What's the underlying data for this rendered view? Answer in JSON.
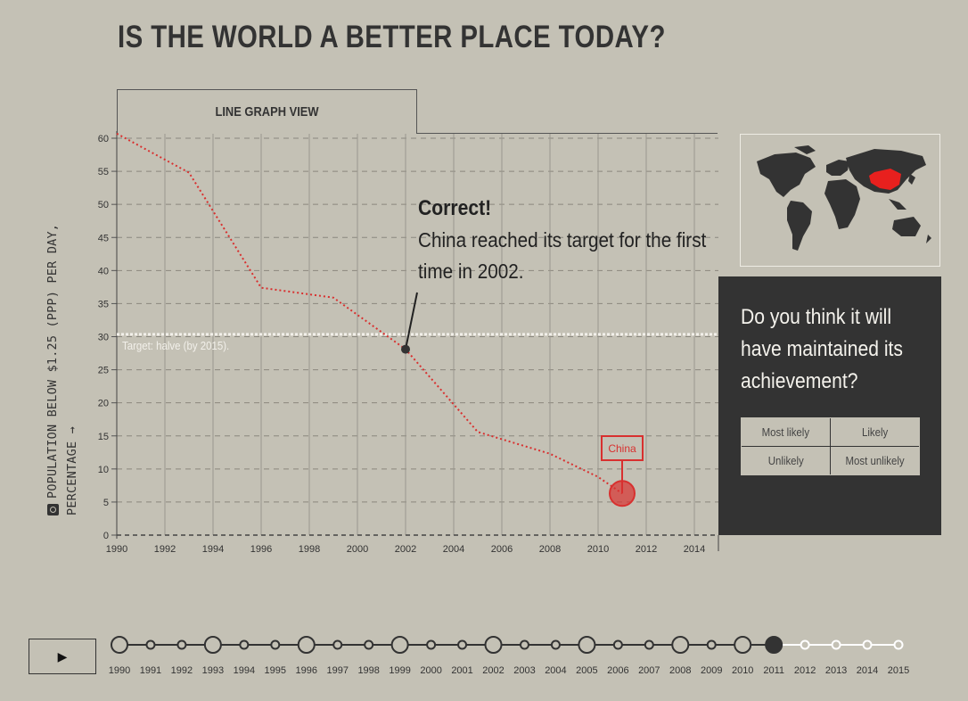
{
  "title": "IS THE WORLD A BETTER PLACE TODAY?",
  "tab_label": "LINE GRAPH VIEW",
  "y_axis_label": "POPULATION BELOW $1.25 (PPP) PER DAY, PERCENTAGE →",
  "annotation": {
    "heading": "Correct!",
    "body": "China reached its target for the first time in 2002."
  },
  "target_label": "Target: halve (by 2015).",
  "series_label": "China",
  "question": {
    "text": "Do you think it will have maintained its achievement?",
    "options": [
      "Most likely",
      "Likely",
      "Unlikely",
      "Most unlikely"
    ]
  },
  "timeline": {
    "play_icon": "▶",
    "years": [
      "1990",
      "1991",
      "1992",
      "1993",
      "1994",
      "1995",
      "1996",
      "1997",
      "1998",
      "1999",
      "2000",
      "2001",
      "2002",
      "2003",
      "2004",
      "2005",
      "2006",
      "2007",
      "2008",
      "2009",
      "2010",
      "2011",
      "2012",
      "2013",
      "2014",
      "2015"
    ],
    "major_years": [
      "1990",
      "1993",
      "1996",
      "1999",
      "2002",
      "2005",
      "2008",
      "2010"
    ],
    "current_year": "2011"
  },
  "colors": {
    "background": "#c4c1b5",
    "line": "#d8302f",
    "dark": "#333333",
    "target": "#f2f0ea"
  },
  "chart_data": {
    "type": "line",
    "series": [
      {
        "name": "China",
        "x": [
          1990,
          1993,
          1996,
          1999,
          2002,
          2005,
          2008,
          2010,
          2011
        ],
        "y": [
          60.7,
          54.8,
          37.4,
          35.9,
          28.1,
          15.6,
          12.3,
          8.8,
          6.3
        ]
      }
    ],
    "target": 30.35,
    "highlight": {
      "x": 2002,
      "y": 28.1
    },
    "current": {
      "x": 2011,
      "y": 6.3
    },
    "xticks": [
      1990,
      1992,
      1994,
      1996,
      1998,
      2000,
      2002,
      2004,
      2006,
      2008,
      2010,
      2012,
      2014
    ],
    "yticks": [
      0,
      5,
      10,
      15,
      20,
      25,
      30,
      35,
      40,
      45,
      50,
      55,
      60
    ],
    "xlim": [
      1990,
      2015
    ],
    "ylim": [
      0,
      60
    ],
    "grid": true
  }
}
